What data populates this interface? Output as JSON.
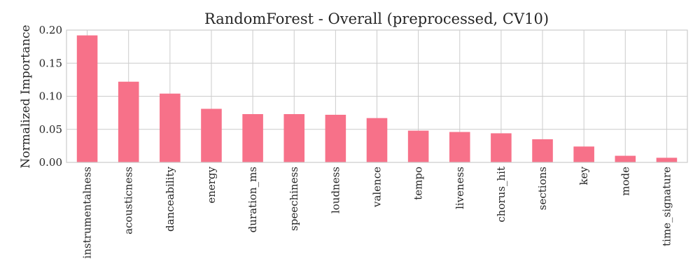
{
  "colors": {
    "bar": "#f77189",
    "grid": "#cccccc",
    "text": "#262626"
  },
  "chart_data": {
    "type": "bar",
    "title": "RandomForest - Overall (preprocessed, CV10)",
    "xlabel": "",
    "ylabel": "Normalized Importance",
    "ylim": [
      0,
      0.2
    ],
    "yticks": [
      "0.00",
      "0.05",
      "0.10",
      "0.15",
      "0.20"
    ],
    "ytick_values": [
      0,
      0.05,
      0.1,
      0.15,
      0.2
    ],
    "grid": true,
    "categories": [
      "instrumentalness",
      "acousticness",
      "danceability",
      "energy",
      "duration_ms",
      "speechiness",
      "loudness",
      "valence",
      "tempo",
      "liveness",
      "chorus_hit",
      "sections",
      "key",
      "mode",
      "time_signature"
    ],
    "values": [
      0.192,
      0.122,
      0.104,
      0.081,
      0.073,
      0.073,
      0.072,
      0.067,
      0.048,
      0.046,
      0.044,
      0.035,
      0.024,
      0.01,
      0.007
    ]
  }
}
